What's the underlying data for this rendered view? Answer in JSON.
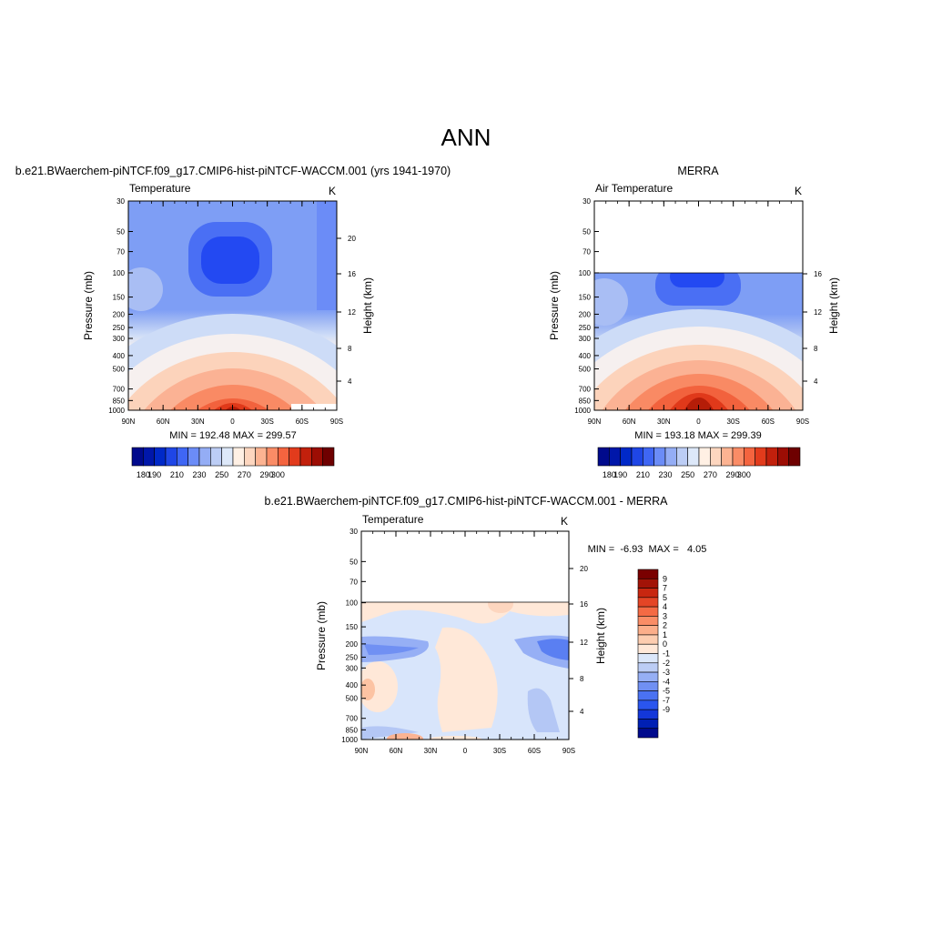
{
  "main_title": "ANN",
  "colors": {
    "temp_levels": [
      "#000a8c",
      "#0017aa",
      "#0029c8",
      "#1f46e6",
      "#3f66f4",
      "#6b8cf7",
      "#94adf5",
      "#bccdf5",
      "#dde8f9",
      "#fff0e4",
      "#fdd6bf",
      "#fcb392",
      "#fa8c66",
      "#f4643f",
      "#e23b1c",
      "#c2200c",
      "#9c0d04",
      "#6e0000"
    ],
    "diff_levels": [
      "#000a8c",
      "#0020b4",
      "#1337d9",
      "#2a55ee",
      "#4a72f2",
      "#7090f3",
      "#96aff5",
      "#bccdf5",
      "#dbe7fa",
      "#ffe8d8",
      "#fdcdb0",
      "#fcae8a",
      "#fa8d66",
      "#f46a44",
      "#e44526",
      "#c82710",
      "#a21307",
      "#7a0000"
    ]
  },
  "panels": [
    {
      "panel_title": "b.e21.BWaerchem-piNTCF.f09_g17.CMIP6-hist-piNTCF-WACCM.001 (yrs 1941-1970)",
      "left_label": "Temperature",
      "right_label": "K",
      "stats": "MIN = 192.48  MAX = 299.57",
      "chart_data": {
        "type": "heatmap",
        "title": "b.e21.BWaerchem-piNTCF.f09_g17.CMIP6-hist-piNTCF-WACCM.001 (yrs 1941-1970)",
        "variable": "Temperature",
        "units": "K",
        "xlabel": "",
        "ylabel": "Pressure (mb)",
        "y2label": "Height (km)",
        "x_ticks": [
          "90N",
          "60N",
          "30N",
          "0",
          "30S",
          "60S",
          "90S"
        ],
        "y_ticks": [
          "30",
          "50",
          "70",
          "100",
          "150",
          "200",
          "250",
          "300",
          "400",
          "500",
          "700",
          "850",
          "1000"
        ],
        "y2_ticks": [
          "20",
          "16",
          "12",
          "8",
          "4"
        ],
        "ylim": [
          1000,
          30
        ],
        "y_scale": "log",
        "min": 192.48,
        "max": 299.57
      }
    },
    {
      "panel_title": "MERRA",
      "left_label": "Air Temperature",
      "right_label": "K",
      "stats": "MIN = 193.18  MAX = 299.39",
      "chart_data": {
        "type": "heatmap",
        "title": "MERRA",
        "variable": "Air Temperature",
        "units": "K",
        "xlabel": "",
        "ylabel": "Pressure (mb)",
        "y2label": "Height (km)",
        "x_ticks": [
          "90N",
          "60N",
          "30N",
          "0",
          "30S",
          "60S",
          "90S"
        ],
        "y_ticks": [
          "30",
          "50",
          "70",
          "100",
          "150",
          "200",
          "250",
          "300",
          "400",
          "500",
          "700",
          "850",
          "1000"
        ],
        "y2_ticks": [
          "16",
          "12",
          "8",
          "4"
        ],
        "ylim": [
          1000,
          30
        ],
        "y_scale": "log",
        "data_top_pressure": 100,
        "min": 193.18,
        "max": 299.39
      }
    },
    {
      "panel_title": "b.e21.BWaerchem-piNTCF.f09_g17.CMIP6-hist-piNTCF-WACCM.001 - MERRA",
      "left_label": "Temperature",
      "right_label": "K",
      "stats": "MIN =  -6.93  MAX =   4.05",
      "chart_data": {
        "type": "heatmap",
        "title": "b.e21.BWaerchem-piNTCF.f09_g17.CMIP6-hist-piNTCF-WACCM.001 - MERRA",
        "variable": "Temperature",
        "units": "K",
        "xlabel": "",
        "ylabel": "Pressure (mb)",
        "y2label": "Height (km)",
        "x_ticks": [
          "90N",
          "60N",
          "30N",
          "0",
          "30S",
          "60S",
          "90S"
        ],
        "y_ticks": [
          "30",
          "50",
          "70",
          "100",
          "150",
          "200",
          "250",
          "300",
          "400",
          "500",
          "700",
          "850",
          "1000"
        ],
        "y2_ticks": [
          "20",
          "16",
          "12",
          "8",
          "4"
        ],
        "ylim": [
          1000,
          30
        ],
        "y_scale": "log",
        "data_top_pressure": 100,
        "min": -6.93,
        "max": 4.05
      }
    }
  ],
  "colorbar_temp": {
    "labels": [
      "180",
      "190",
      "210",
      "230",
      "250",
      "270",
      "290",
      "300"
    ]
  },
  "colorbar_diff": {
    "labels": [
      "9",
      "7",
      "5",
      "4",
      "3",
      "2",
      "1",
      "0",
      "-1",
      "-2",
      "-3",
      "-4",
      "-5",
      "-7",
      "-9"
    ]
  }
}
